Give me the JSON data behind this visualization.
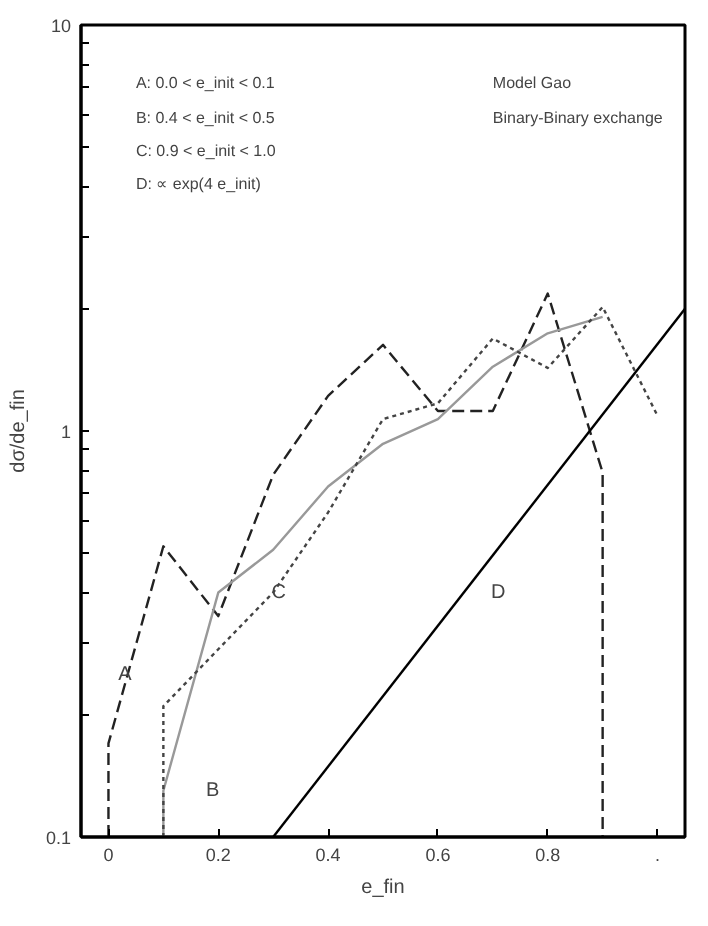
{
  "chart_data": {
    "type": "line",
    "xlabel": "e_fin",
    "ylabel": "dσ/de_fin",
    "log": "y",
    "grid": false,
    "marker": "none",
    "xlim": [
      -0.05,
      1.05
    ],
    "ylim": [
      0.1,
      10
    ],
    "xticks": [
      0,
      0.2,
      0.4,
      0.6,
      0.8,
      {
        "value": 1,
        "label": "."
      }
    ],
    "yticks": [
      0.1,
      {
        "value": 0.2,
        "label": null
      },
      {
        "value": 0.3,
        "label": null
      },
      {
        "value": 0.4,
        "label": null
      },
      {
        "value": 0.5,
        "label": null
      },
      {
        "value": 0.6,
        "label": null
      },
      {
        "value": 0.7,
        "label": null
      },
      {
        "value": 0.8,
        "label": null
      },
      {
        "value": 0.9,
        "label": null
      },
      1,
      {
        "value": 2,
        "label": null
      },
      {
        "value": 3,
        "label": null
      },
      {
        "value": 4,
        "label": null
      },
      {
        "value": 5,
        "label": null
      },
      {
        "value": 6,
        "label": null
      },
      {
        "value": 7,
        "label": null
      },
      {
        "value": 8,
        "label": null
      },
      {
        "value": 9,
        "label": null
      },
      10
    ],
    "series": [
      {
        "color": "#222222",
        "line_style": "dashed",
        "x": [
          0,
          0,
          0.1,
          0.2,
          0.3,
          0.4,
          0.5,
          0.6,
          0.7,
          0.8,
          0.9,
          0.9
        ],
        "values": [
          0.1,
          0.17,
          0.52,
          0.35,
          0.78,
          1.22,
          1.63,
          1.12,
          1.12,
          2.18,
          0.79,
          0.1
        ]
      },
      {
        "color": "#999999",
        "line_style": "solid",
        "x": [
          0.1,
          0.1,
          0.2,
          0.3,
          0.4,
          0.5,
          0.6,
          0.7,
          0.8,
          0.9
        ],
        "values": [
          0.1,
          0.13,
          0.4,
          0.51,
          0.73,
          0.93,
          1.07,
          1.44,
          1.74,
          1.91
        ]
      },
      {
        "color": "#444444",
        "line_style": "dotted",
        "x": [
          0.1,
          0.1,
          0.2,
          0.3,
          0.4,
          0.5,
          0.6,
          0.7,
          0.8,
          0.9,
          1.0
        ],
        "values": [
          0.1,
          0.21,
          0.29,
          0.4,
          0.63,
          1.07,
          1.17,
          1.69,
          1.43,
          2.02,
          1.09
        ]
      },
      {
        "color": "#000000",
        "line_style": "solid",
        "x": [
          0.3,
          1.05
        ],
        "values": [
          0.1,
          2.0
        ]
      }
    ],
    "annotations": [
      "A: 0.0 < e_init < 0.1",
      "B: 0.4 < e_init < 0.5",
      "C: 0.9 < e_init < 1.0",
      "D: ∝ exp(4 e_init)",
      "Model Gao",
      "Binary-Binary exchange",
      {
        "text": "A",
        "x": 0.03,
        "y": 0.25
      },
      "B",
      {
        "text": "C",
        "x": 0.31,
        "y": 0.4
      },
      "D"
    ]
  }
}
